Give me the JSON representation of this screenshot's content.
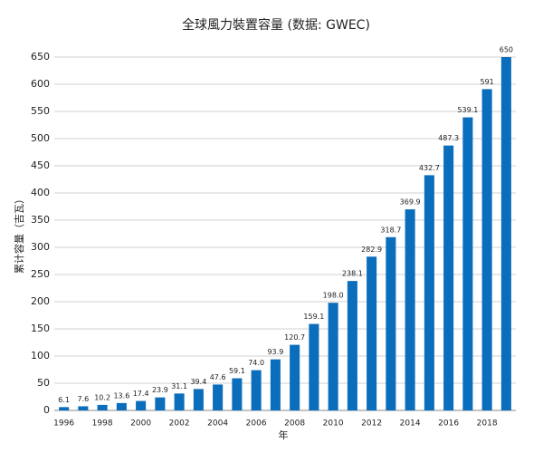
{
  "chart_data": {
    "type": "bar",
    "title": "全球風力裝置容量 (数据: GWEC)",
    "x_label": "年",
    "y_label": "累计容量（吉瓦）",
    "categories": [
      "1996",
      null,
      "1998",
      null,
      "2000",
      null,
      "2002",
      null,
      "2004",
      null,
      "2006",
      null,
      "2008",
      null,
      "2010",
      null,
      "2012",
      null,
      "2014",
      null,
      "2016",
      null,
      "2018",
      null
    ],
    "values": [
      6.1,
      7.6,
      10.2,
      13.6,
      17.4,
      23.9,
      31.1,
      39.4,
      47.6,
      59.1,
      74.0,
      93.9,
      120.7,
      159.1,
      198.0,
      238.1,
      282.9,
      318.7,
      369.9,
      432.7,
      487.3,
      539.1,
      591,
      650
    ],
    "value_labels": [
      "6.1",
      "7.6",
      "10.2",
      "13.6",
      "17.4",
      "23.9",
      "31.1",
      "39.4",
      "47.6",
      "59.1",
      "74.0",
      "93.9",
      "120.7",
      "159.1",
      "198.0",
      "238.1",
      "282.9",
      "318.7",
      "369.9",
      "432.7",
      "487.3",
      "539.1",
      "591",
      "650"
    ],
    "color": "#0a6ebd",
    "ylim": [
      0,
      650
    ],
    "yticks": [
      0,
      50,
      100,
      150,
      200,
      250,
      300,
      350,
      400,
      450,
      500,
      550,
      600,
      650
    ],
    "grid": true
  }
}
